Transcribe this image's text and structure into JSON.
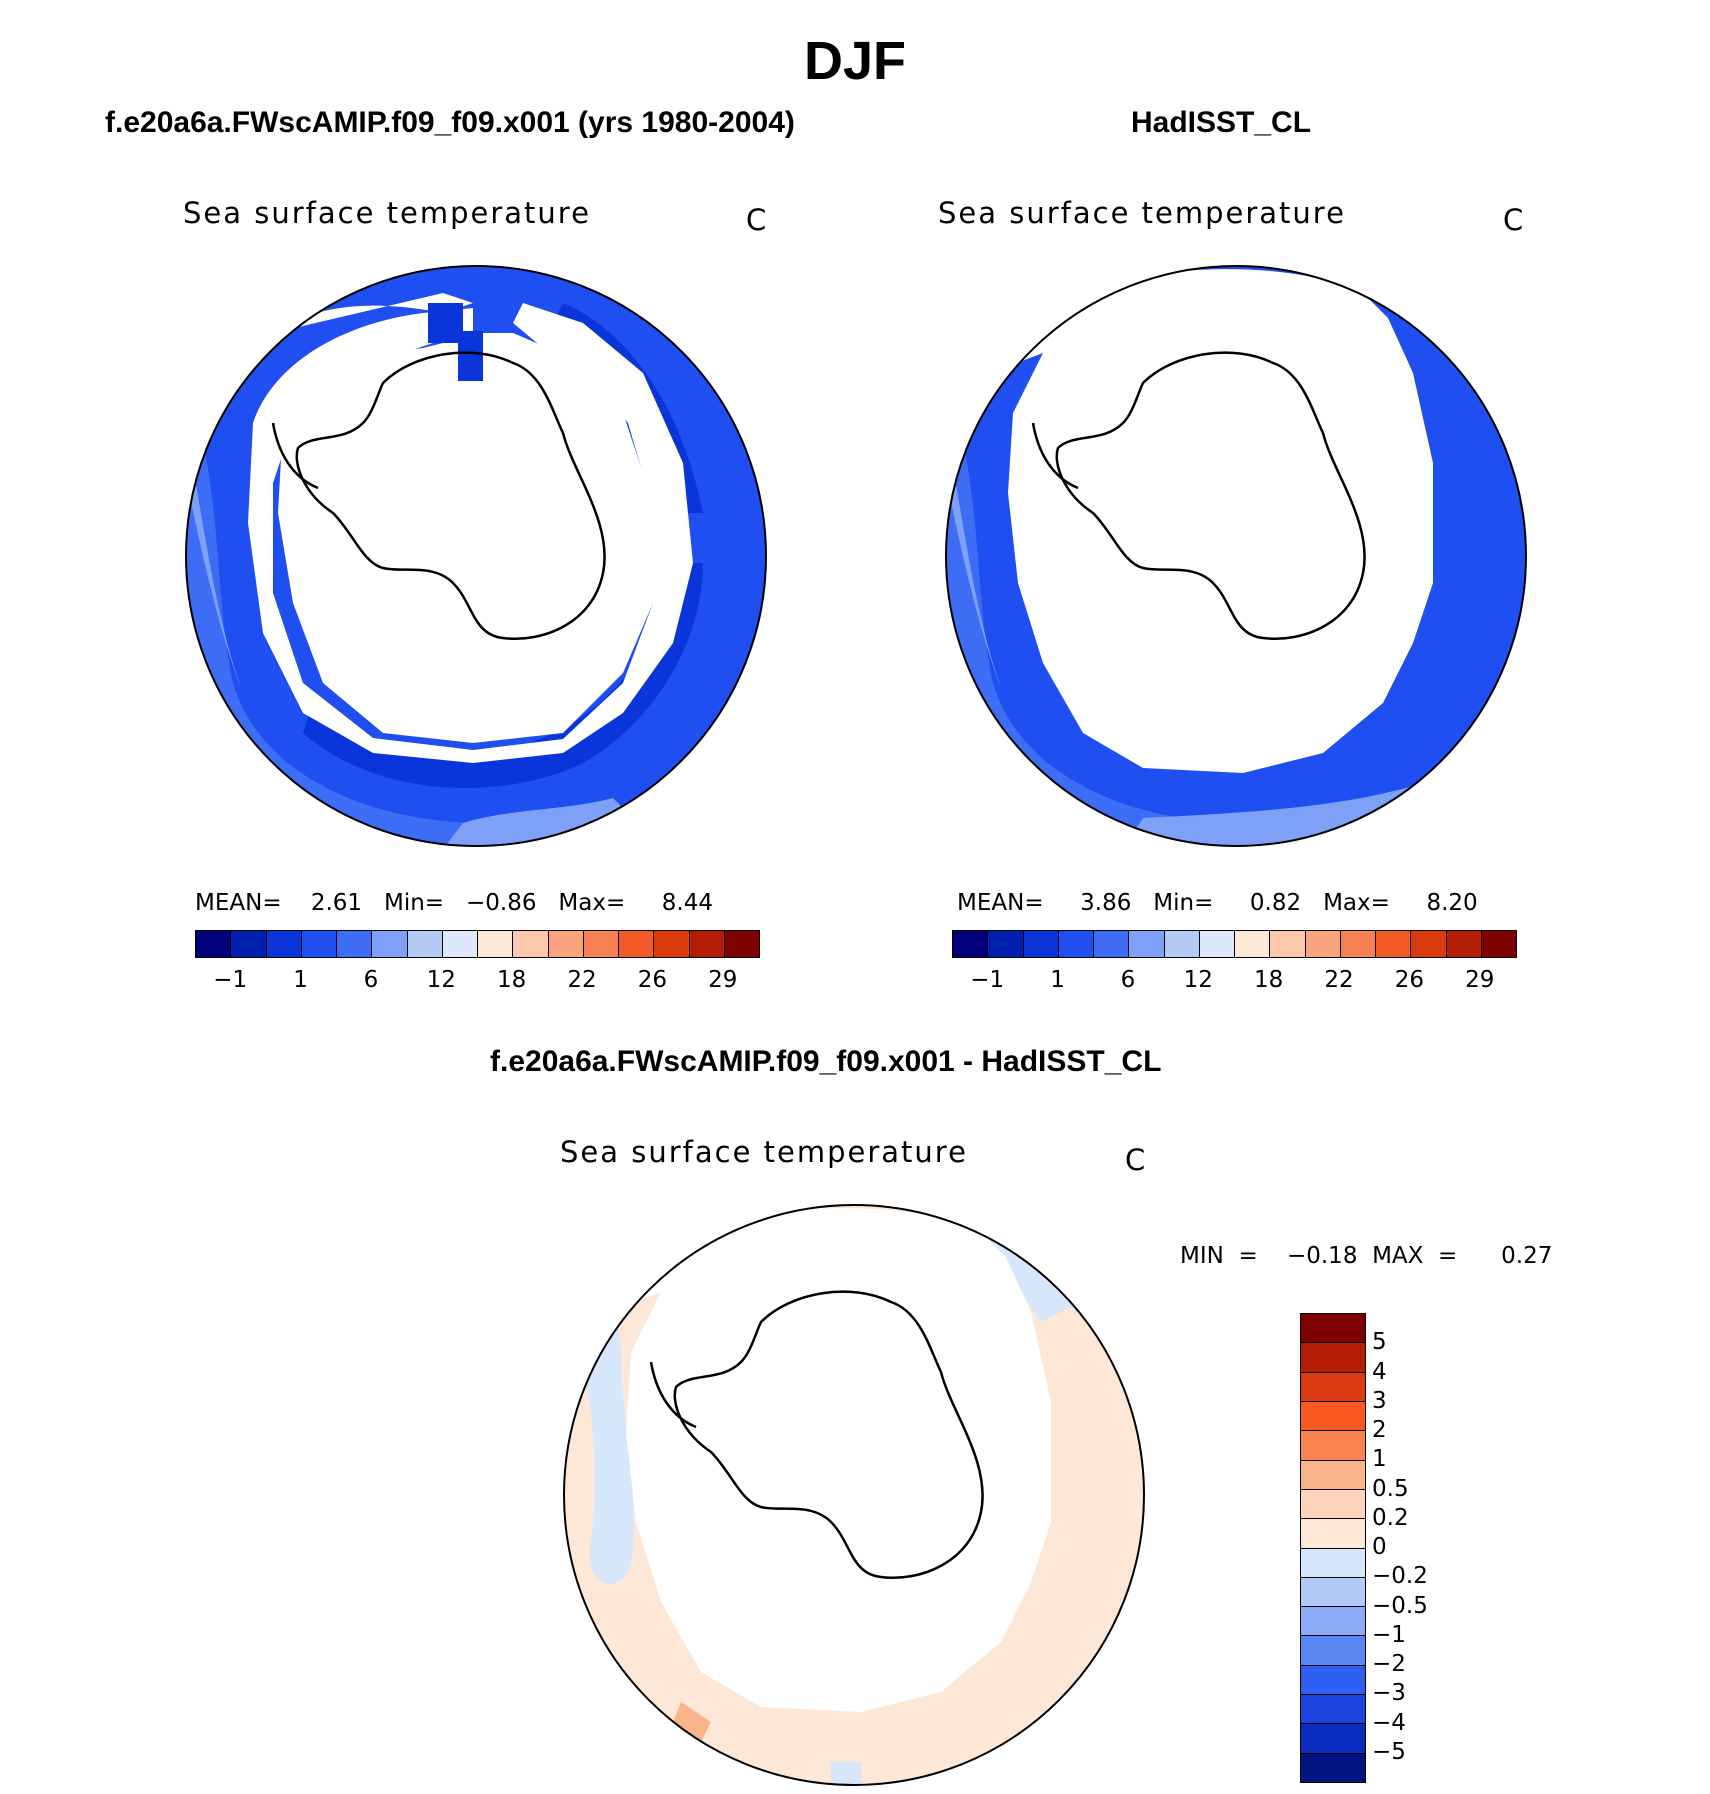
{
  "figure": {
    "season": "DJF"
  },
  "panels": {
    "model": {
      "title": "f.e20a6a.FWscAMIP.f09_f09.x001 (yrs 1980-2004)",
      "variable": "Sea surface temperature",
      "units": "C",
      "stats": "MEAN=    2.61   Min=   −0.86   Max=     8.44"
    },
    "obs": {
      "title": "HadISST_CL",
      "variable": "Sea surface temperature",
      "units": "C",
      "stats": "MEAN=     3.86   Min=     0.82   Max=     8.20"
    },
    "diff": {
      "title": "f.e20a6a.FWscAMIP.f09_f09.x001 - HadISST_CL",
      "variable": "Sea surface temperature",
      "units": "C",
      "stats": "MIN  =    −0.18  MAX  =      0.27"
    }
  },
  "colorbars": {
    "abs": {
      "colors": [
        "#00007a",
        "#001fb0",
        "#0a35db",
        "#1f4ff0",
        "#3d6cf5",
        "#7ea1f7",
        "#b3caf7",
        "#dde9fb",
        "#fde8d8",
        "#fcc9ab",
        "#f9a47f",
        "#f78155",
        "#f25a27",
        "#db3a10",
        "#b51e05",
        "#7f0000"
      ],
      "tick_labels": [
        "−1",
        "1",
        "6",
        "12",
        "18",
        "22",
        "26",
        "29"
      ]
    },
    "diff": {
      "colors": [
        "#7f0000",
        "#b51e05",
        "#db3a10",
        "#fa5a22",
        "#f9844f",
        "#fab48c",
        "#fcd3bb",
        "#fde8d8",
        "#d7e7fb",
        "#b3caf7",
        "#8cabf6",
        "#5a86f2",
        "#2d5ff0",
        "#1a43e0",
        "#0a2cc0",
        "#00137f"
      ],
      "tick_labels": [
        "5",
        "4",
        "3",
        "2",
        "1",
        "0.5",
        "0.2",
        "0",
        "−0.2",
        "−0.5",
        "−1",
        "−2",
        "−3",
        "−4",
        "−5"
      ]
    }
  }
}
